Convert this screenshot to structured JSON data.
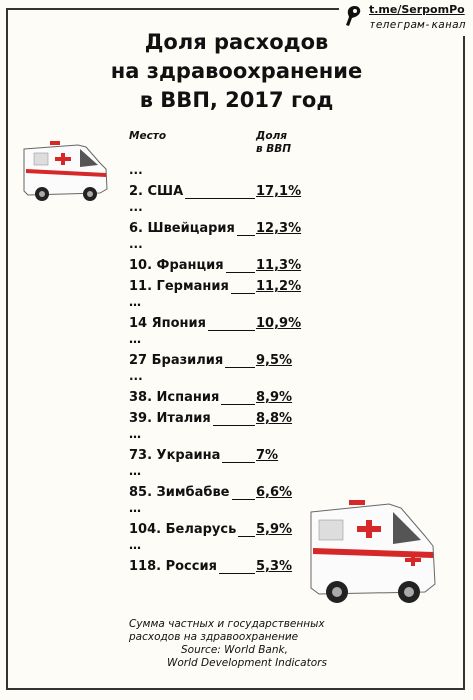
{
  "brand": {
    "url": "t.me/SerpomPo",
    "subtitle": "телеграм-канал",
    "icon": "pen-nib-icon"
  },
  "title_lines": [
    "Доля расходов",
    "на здравоохранение",
    "в ВВП, 2017 год"
  ],
  "columns": {
    "rank": "Место",
    "share_line1": "Доля",
    "share_line2": "в ВВП"
  },
  "ellipsis_a": "...",
  "ellipsis_b": "…",
  "chart_data": {
    "type": "table",
    "title": "Доля расходов на здравоохранение в ВВП, 2017 год",
    "columns": [
      "Место",
      "Доля в ВВП"
    ],
    "rows": [
      {
        "rank": 2,
        "label": "2. США",
        "value": 17.1,
        "value_text": "17,1%"
      },
      {
        "rank": 6,
        "label": "6. Швейцария",
        "value": 12.3,
        "value_text": "12,3%"
      },
      {
        "rank": 10,
        "label": "10. Франция",
        "value": 11.3,
        "value_text": "11,3%"
      },
      {
        "rank": 11,
        "label": "11. Германия",
        "value": 11.2,
        "value_text": "11,2%"
      },
      {
        "rank": 14,
        "label": "14 Япония",
        "value": 10.9,
        "value_text": "10,9%"
      },
      {
        "rank": 27,
        "label": "27 Бразилия",
        "value": 9.5,
        "value_text": "9,5%"
      },
      {
        "rank": 38,
        "label": "38. Испания",
        "value": 8.9,
        "value_text": "8,9%"
      },
      {
        "rank": 39,
        "label": "39. Италия",
        "value": 8.8,
        "value_text": "8,8%"
      },
      {
        "rank": 73,
        "label": "73. Украина",
        "value": 7,
        "value_text": "7%"
      },
      {
        "rank": 85,
        "label": "85. Зимбабве",
        "value": 6.6,
        "value_text": "6,6%"
      },
      {
        "rank": 104,
        "label": "104. Беларусь",
        "value": 5.9,
        "value_text": "5,9%"
      },
      {
        "rank": 118,
        "label": "118. Россия",
        "value": 5.3,
        "value_text": "5,3%"
      }
    ]
  },
  "footnote": {
    "line1": "Сумма частных и государственных",
    "line2": "расходов на здравоохранение",
    "line3": "Source: World Bank,",
    "line4": "World Development Indicators"
  },
  "illustrations": [
    "ambulance-icon",
    "ambulance-icon"
  ],
  "colors": {
    "background": "#fdfcf6",
    "text": "#111111",
    "ambulance_red": "#d62828"
  }
}
